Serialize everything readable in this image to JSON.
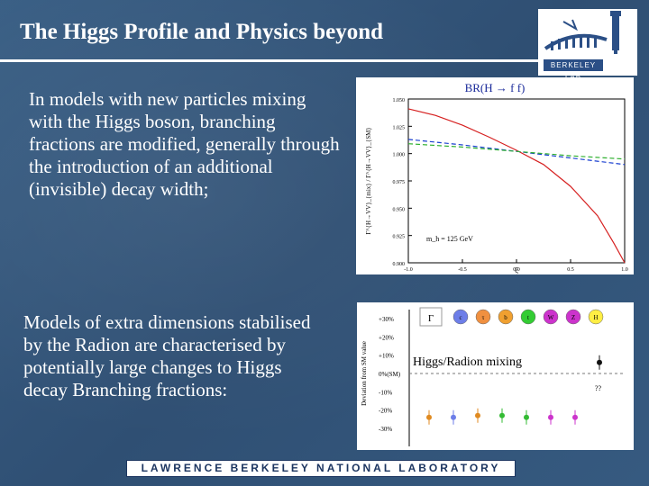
{
  "slide": {
    "title": "The Higgs Profile and Physics beyond",
    "paragraph_1": "In models with new particles mixing with the Higgs boson, branching fractions are modified, generally through the introduction of an additional (invisible) decay width;",
    "paragraph_2": "Models of extra dimensions stabilised by the Radion are characterised by potentially large changes to Higgs decay Branching fractions:",
    "logo_text": "BERKELEY LAB",
    "footer_text": "LAWRENCE BERKELEY NATIONAL LABORATORY"
  },
  "chart_data": [
    {
      "type": "line",
      "title": "BR(H → f f)",
      "xlabel": "ξ",
      "ylabel": "Γ^{H→VV}_{mix} / Γ^{H→VV}_{SM}",
      "annotation": "m_h = 125 GeV",
      "xlim": [
        -1.0,
        1.0
      ],
      "ylim": [
        0.9,
        1.05
      ],
      "x_ticks": [
        "-1.0",
        "-0.5",
        "0.0",
        "0.5",
        "1.0"
      ],
      "y_ticks": [
        "1.050",
        "1.025",
        "1.000",
        "0.975",
        "0.950",
        "0.925",
        "0.900"
      ],
      "series": [
        {
          "color": "#d62020",
          "x": [
            -1.0,
            -0.75,
            -0.5,
            -0.25,
            0.0,
            0.25,
            0.5,
            0.75,
            0.9,
            1.0
          ],
          "y": [
            1.041,
            1.035,
            1.026,
            1.015,
            1.003,
            0.99,
            0.97,
            0.943,
            0.918,
            0.9
          ]
        },
        {
          "color": "#1a3fd0",
          "x": [
            -1.0,
            -0.5,
            0.0,
            0.5,
            1.0
          ],
          "y": [
            1.013,
            1.008,
            1.002,
            0.996,
            0.99
          ]
        },
        {
          "color": "#2fb02f",
          "x": [
            -1.0,
            -0.5,
            0.0,
            0.5,
            1.0
          ],
          "y": [
            1.009,
            1.006,
            1.002,
            0.998,
            0.995
          ]
        }
      ],
      "grid": false
    },
    {
      "type": "scatter",
      "ylabel": "Deviation from SM value",
      "annotation": "Higgs/Radion mixing",
      "y_ticks": [
        "+30%",
        "+20%",
        "+10%",
        "0%(SM)",
        "-10%",
        "-20%",
        "-30%"
      ],
      "ylim": [
        -30,
        30
      ],
      "legend_labels": [
        "Γ",
        "c",
        "τ",
        "b",
        "t",
        "W",
        "Z",
        "H"
      ],
      "legend_colors": [
        "#ffffff",
        "#6d7ee8",
        "#f09040",
        "#f0a030",
        "#33cc33",
        "#cc33cc",
        "#cc33cc",
        "#ffee44"
      ],
      "unknown_label": "??",
      "points": [
        {
          "label": "c",
          "color": "#e08a20",
          "value": -24
        },
        {
          "label": "τ",
          "color": "#6d7ee8",
          "value": -24
        },
        {
          "label": "b",
          "color": "#e08a20",
          "value": -23
        },
        {
          "label": "t",
          "color": "#33bb33",
          "value": -23
        },
        {
          "label": "t",
          "color": "#33bb33",
          "value": -24
        },
        {
          "label": "W",
          "color": "#cc33cc",
          "value": -24
        },
        {
          "label": "Z",
          "color": "#cc33cc",
          "value": -24
        },
        {
          "label": "H",
          "color": "#111111",
          "value": 6
        }
      ]
    }
  ]
}
